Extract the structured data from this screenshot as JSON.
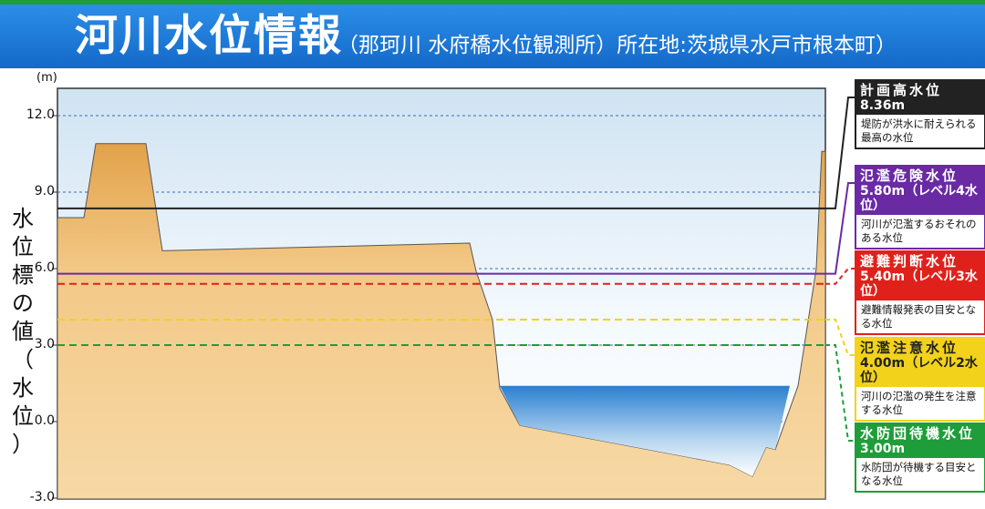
{
  "header": {
    "title": "河川水位情報",
    "subtitle": "（那珂川 水府橋水位観測所）所在地:茨城県水戸市根本町）"
  },
  "axis": {
    "unit": "(m)",
    "ylabel": [
      "水",
      "位",
      "標",
      "の",
      "値",
      "（",
      "水",
      "位",
      "）"
    ],
    "ticks": [
      "12.0",
      "9.0",
      "6.0",
      "3.0",
      "0.0",
      "-3.0"
    ],
    "tick_values": [
      12,
      9,
      6,
      3,
      0,
      -3
    ],
    "ylim": [
      -3,
      13.2
    ]
  },
  "levels": [
    {
      "name": "計画高水位",
      "value_text": "8.36m",
      "value": 8.36,
      "desc": "堤防が洪水に耐えられる最高の水位",
      "color": "#222222",
      "text_color": "#ffffff",
      "line": "solid"
    },
    {
      "name": "氾濫危険水位",
      "value_text": "5.80m（レベル4水位）",
      "value": 5.8,
      "desc": "河川が氾濫するおそれのある水位",
      "color": "#6a2aa4",
      "text_color": "#ffffff",
      "line": "solid"
    },
    {
      "name": "避難判断水位",
      "value_text": "5.40m（レベル3水位）",
      "value": 5.4,
      "desc": "避難情報発表の目安となる水位",
      "color": "#e0211b",
      "text_color": "#ffffff",
      "line": "dashed"
    },
    {
      "name": "氾濫注意水位",
      "value_text": "4.00m（レベル2水位）",
      "value": 4.0,
      "desc": "河川の氾濫の発生を注意する水位",
      "color": "#f2d21a",
      "text_color": "#222222",
      "line": "dashed"
    },
    {
      "name": "水防団待機水位",
      "value_text": "3.00m",
      "value": 3.0,
      "desc": "水防団が待機する目安となる水位",
      "color": "#1f9d3a",
      "text_color": "#ffffff",
      "line": "dashed"
    }
  ],
  "river_water_level": 1.4
}
